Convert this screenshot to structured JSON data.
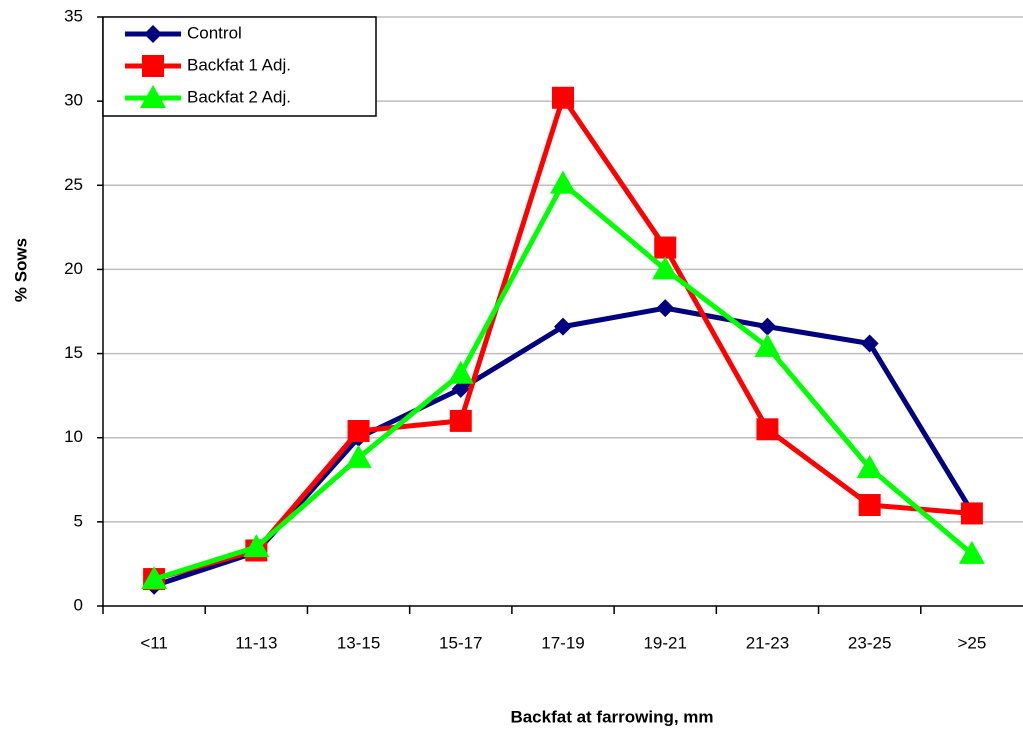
{
  "chart_data": {
    "type": "line",
    "x_label": "Backfat at farrowing, mm",
    "y_label": "% Sows",
    "categories": [
      "<11",
      "11-13",
      "13-15",
      "15-17",
      "17-19",
      "19-21",
      "21-23",
      "23-25",
      ">25"
    ],
    "series": [
      {
        "name": "Control",
        "color": "#000080",
        "marker": "diamond",
        "values": [
          1.2,
          3.2,
          10.0,
          12.9,
          16.6,
          17.7,
          16.6,
          15.6,
          5.6
        ]
      },
      {
        "name": "Backfat 1 Adj.",
        "color": "#ff0000",
        "marker": "square",
        "values": [
          1.6,
          3.3,
          10.4,
          11.0,
          30.2,
          21.3,
          10.5,
          6.0,
          5.5
        ]
      },
      {
        "name": "Backfat 2 Adj.",
        "color": "#00ff00",
        "marker": "triangle",
        "values": [
          1.6,
          3.5,
          8.8,
          13.8,
          25.1,
          20.0,
          15.4,
          8.2,
          3.1
        ]
      }
    ],
    "ylim": [
      0,
      35
    ],
    "yticks": [
      0,
      5,
      10,
      15,
      20,
      25,
      30,
      35
    ],
    "grid": true,
    "legend": "top-left"
  }
}
